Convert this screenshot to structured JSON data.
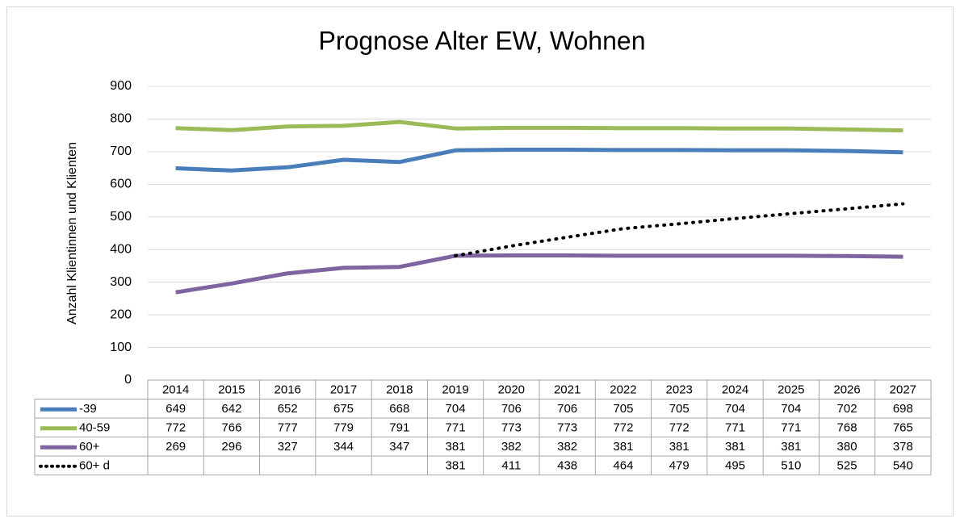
{
  "chart_data": {
    "type": "line",
    "title": "Prognose Alter EW, Wohnen",
    "y_label": "Anzahl Klientinnen und Klienten",
    "categories": [
      "2014",
      "2015",
      "2016",
      "2017",
      "2018",
      "2019",
      "2020",
      "2021",
      "2022",
      "2023",
      "2024",
      "2025",
      "2026",
      "2027"
    ],
    "series": [
      {
        "name": "-39",
        "color": "#4a7ebb",
        "style": "solid",
        "values": [
          649,
          642,
          652,
          675,
          668,
          704,
          706,
          706,
          705,
          705,
          704,
          704,
          702,
          698
        ]
      },
      {
        "name": "40-59",
        "color": "#9bbb59",
        "style": "solid",
        "values": [
          772,
          766,
          777,
          779,
          791,
          771,
          773,
          773,
          772,
          772,
          771,
          771,
          768,
          765
        ]
      },
      {
        "name": "60+",
        "color": "#8064a2",
        "style": "solid",
        "values": [
          269,
          296,
          327,
          344,
          347,
          381,
          382,
          382,
          381,
          381,
          381,
          381,
          380,
          378
        ]
      },
      {
        "name": "60+ d",
        "color": "#000000",
        "style": "dotted",
        "values": [
          null,
          null,
          null,
          null,
          null,
          381,
          411,
          438,
          464,
          479,
          495,
          510,
          525,
          540
        ]
      }
    ],
    "ylim": [
      0,
      900
    ],
    "yticks": [
      0,
      100,
      200,
      300,
      400,
      500,
      600,
      700,
      800,
      900
    ],
    "grid": true,
    "data_table": true
  }
}
